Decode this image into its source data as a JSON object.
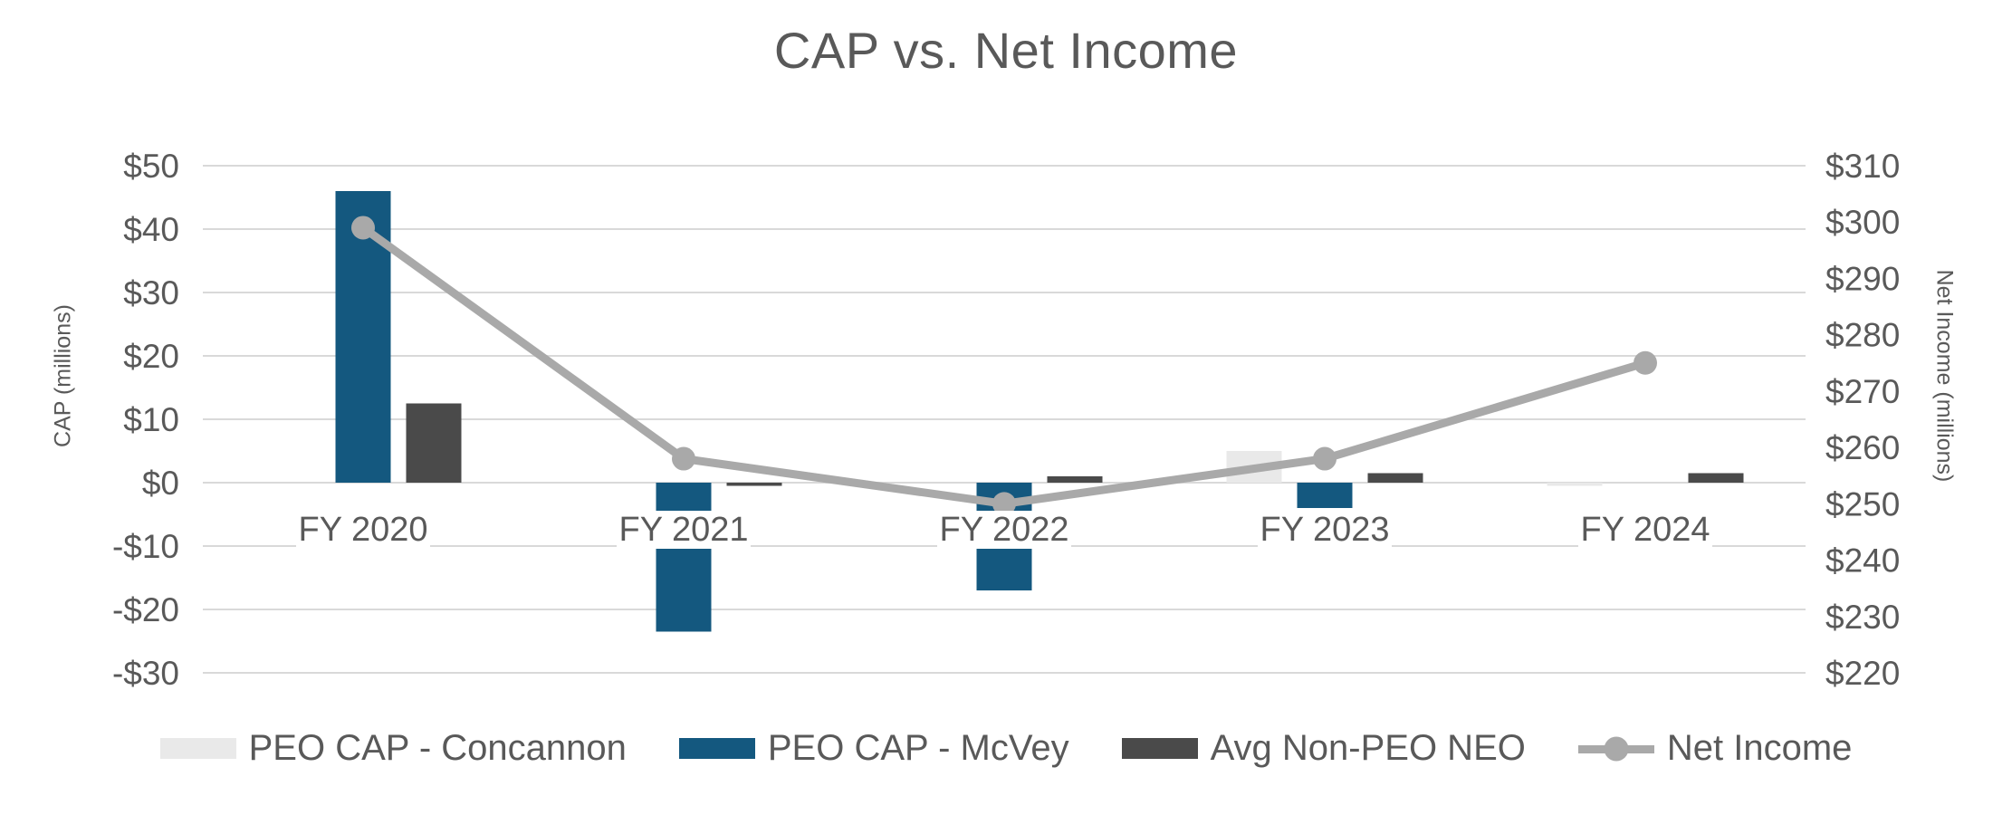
{
  "title": "CAP vs. Net Income",
  "chart_data": {
    "type": "combo-bar-line",
    "title": "CAP vs. Net Income",
    "categories": [
      "FY 2020",
      "FY 2021",
      "FY 2022",
      "FY 2023",
      "FY 2024"
    ],
    "series": [
      {
        "name": "PEO CAP - Concannon",
        "type": "bar",
        "axis": "left",
        "color": "#E9E9E9",
        "values": [
          null,
          null,
          null,
          5,
          -0.5
        ]
      },
      {
        "name": "PEO CAP - McVey",
        "type": "bar",
        "axis": "left",
        "color": "#14587F",
        "values": [
          46,
          -23.5,
          -17,
          -4,
          null
        ]
      },
      {
        "name": "Avg Non-PEO NEO",
        "type": "bar",
        "axis": "left",
        "color": "#4A4A4A",
        "values": [
          12.5,
          -0.5,
          1,
          1.5,
          1.5
        ]
      },
      {
        "name": "Net Income",
        "type": "line",
        "axis": "right",
        "color": "#A9A9A9",
        "values": [
          299,
          258,
          250,
          258,
          275
        ]
      }
    ],
    "left_axis": {
      "label": "CAP (millions)",
      "min": -30,
      "max": 50,
      "step": 10,
      "ticks": [
        "$50",
        "$40",
        "$30",
        "$20",
        "$10",
        "$0",
        "-$10",
        "-$20",
        "-$30"
      ]
    },
    "right_axis": {
      "label": "Net Income (millions)",
      "min": 220,
      "max": 310,
      "step": 10,
      "ticks": [
        "$310",
        "$300",
        "$290",
        "$280",
        "$270",
        "$260",
        "$250",
        "$240",
        "$230",
        "$220"
      ]
    },
    "grid": true,
    "legend_position": "bottom",
    "colors": {
      "grid": "#D9D9D9",
      "text": "#595959",
      "background": "#FFFFFF"
    }
  }
}
